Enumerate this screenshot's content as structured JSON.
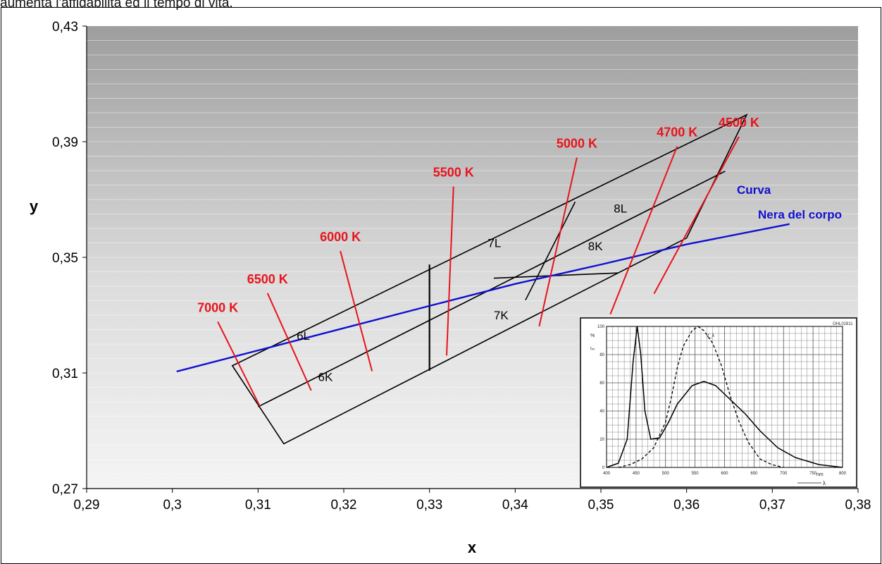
{
  "caption": "aumenta l'affidabilità ed il tempo di vita.",
  "chart_data": {
    "type": "line",
    "xlabel": "x",
    "ylabel": "y",
    "xlim": [
      0.29,
      0.38
    ],
    "ylim": [
      0.27,
      0.43
    ],
    "x_ticks": [
      "0,29",
      "0,3",
      "0,31",
      "0,32",
      "0,33",
      "0,34",
      "0,35",
      "0,36",
      "0,37",
      "0,38"
    ],
    "y_ticks": [
      "0,27",
      "0,31",
      "0,35",
      "0,39",
      "0,43"
    ],
    "grid": "horizontal",
    "legend": "none",
    "background": "gradient grey",
    "colors": {
      "cct_lines": "#e8141c",
      "planck": "#1010d0",
      "bins": "#000000"
    },
    "planck_curve": {
      "label_line1": "Curva",
      "label_line2": "Nera del corpo",
      "points": [
        [
          0.3005,
          0.3105
        ],
        [
          0.31,
          0.3178
        ],
        [
          0.32,
          0.3255
        ],
        [
          0.33,
          0.3332
        ],
        [
          0.34,
          0.3408
        ],
        [
          0.35,
          0.3475
        ],
        [
          0.36,
          0.3545
        ],
        [
          0.372,
          0.3615
        ]
      ]
    },
    "cct_lines": [
      {
        "label": "7000 K",
        "x1": 0.3053,
        "y1": 0.3277,
        "x2": 0.3102,
        "y2": 0.2985
      },
      {
        "label": "6500 K",
        "x1": 0.3111,
        "y1": 0.3376,
        "x2": 0.3162,
        "y2": 0.3039
      },
      {
        "label": "6000 K",
        "x1": 0.3196,
        "y1": 0.3522,
        "x2": 0.3233,
        "y2": 0.3106
      },
      {
        "label": "5500 K",
        "x1": 0.3328,
        "y1": 0.3745,
        "x2": 0.332,
        "y2": 0.316
      },
      {
        "label": "5000 K",
        "x1": 0.3472,
        "y1": 0.3845,
        "x2": 0.3428,
        "y2": 0.3261
      },
      {
        "label": "4700 K",
        "x1": 0.3589,
        "y1": 0.3884,
        "x2": 0.3511,
        "y2": 0.3303
      },
      {
        "label": "4500 K",
        "x1": 0.3661,
        "y1": 0.3917,
        "x2": 0.3562,
        "y2": 0.3374
      }
    ],
    "bins": {
      "outer": [
        [
          0.307,
          0.3125
        ],
        [
          0.313,
          0.2855
        ],
        [
          0.36,
          0.3567
        ],
        [
          0.367,
          0.3993
        ]
      ],
      "middle_line": [
        [
          0.31,
          0.2983
        ],
        [
          0.3645,
          0.3798
        ]
      ],
      "divider_533": [
        [
          0.33,
          0.3475
        ],
        [
          0.33,
          0.3108
        ]
      ],
      "divider_5000": [
        [
          0.347,
          0.3692
        ],
        [
          0.3412,
          0.3352
        ]
      ],
      "divider_8k": [
        [
          0.3375,
          0.3428
        ],
        [
          0.352,
          0.3446
        ]
      ],
      "labels": [
        {
          "text": "6L",
          "x": 0.3145,
          "y": 0.3215
        },
        {
          "text": "6K",
          "x": 0.317,
          "y": 0.3072
        },
        {
          "text": "7L",
          "x": 0.3368,
          "y": 0.3535
        },
        {
          "text": "7K",
          "x": 0.3375,
          "y": 0.3285
        },
        {
          "text": "8L",
          "x": 0.3515,
          "y": 0.3655
        },
        {
          "text": "8K",
          "x": 0.3485,
          "y": 0.3525
        }
      ]
    }
  },
  "inset": {
    "tag": "OHL02811",
    "y_unit": "%",
    "y_ticks": [
      "0",
      "20",
      "40",
      "60",
      "80",
      "100"
    ],
    "x_ticks": [
      "400",
      "450",
      "500",
      "550",
      "600",
      "650",
      "700",
      "750",
      "800"
    ],
    "x_unit": "nm",
    "x_symbol": "λ",
    "y_symbol": "Iᵣₑₗ",
    "v_symbol": "V_λ",
    "led_curve": [
      [
        400,
        0
      ],
      [
        420,
        3
      ],
      [
        435,
        20
      ],
      [
        445,
        75
      ],
      [
        452,
        100
      ],
      [
        458,
        80
      ],
      [
        465,
        40
      ],
      [
        475,
        20
      ],
      [
        490,
        21
      ],
      [
        505,
        32
      ],
      [
        520,
        45
      ],
      [
        545,
        58
      ],
      [
        565,
        61
      ],
      [
        585,
        58
      ],
      [
        610,
        48
      ],
      [
        635,
        38
      ],
      [
        660,
        26
      ],
      [
        690,
        14
      ],
      [
        720,
        7
      ],
      [
        760,
        2
      ],
      [
        800,
        0
      ]
    ],
    "v_curve": [
      [
        420,
        0
      ],
      [
        440,
        2
      ],
      [
        460,
        6
      ],
      [
        480,
        14
      ],
      [
        500,
        32
      ],
      [
        510,
        50
      ],
      [
        520,
        71
      ],
      [
        530,
        86
      ],
      [
        545,
        97
      ],
      [
        555,
        100
      ],
      [
        565,
        97
      ],
      [
        580,
        88
      ],
      [
        595,
        72
      ],
      [
        610,
        50
      ],
      [
        625,
        32
      ],
      [
        640,
        18
      ],
      [
        660,
        6
      ],
      [
        680,
        2
      ],
      [
        700,
        0
      ]
    ]
  }
}
